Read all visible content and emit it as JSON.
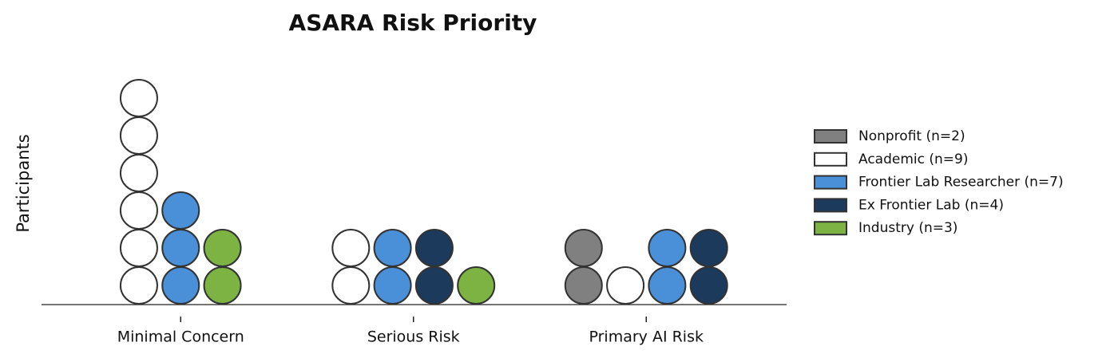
{
  "chart_data": {
    "type": "unit",
    "title": "ASARA Risk Priority",
    "y_label": "Participants",
    "categories": [
      "Minimal Concern",
      "Serious Risk",
      "Primary AI Risk"
    ],
    "series": [
      {
        "name": "Nonprofit (n=2)",
        "color": "#808080",
        "values": [
          0,
          0,
          2
        ]
      },
      {
        "name": "Academic (n=9)",
        "color": "#ffffff",
        "values": [
          6,
          2,
          1
        ]
      },
      {
        "name": "Frontier Lab Researcher (n=7)",
        "color": "#4a90d9",
        "values": [
          3,
          2,
          2
        ]
      },
      {
        "name": "Ex Frontier Lab (n=4)",
        "color": "#1b3a5c",
        "values": [
          0,
          2,
          2
        ]
      },
      {
        "name": "Industry (n=3)",
        "color": "#7cb342",
        "values": [
          2,
          1,
          0
        ]
      }
    ]
  }
}
